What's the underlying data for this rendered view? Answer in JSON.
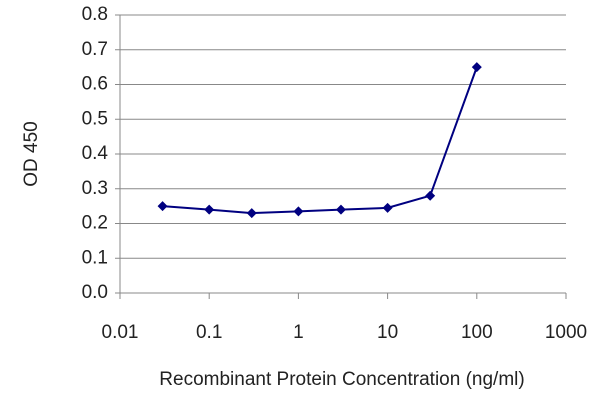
{
  "chart_data": {
    "type": "line",
    "xlabel": "Recombinant Protein Concentration (ng/ml)",
    "ylabel": "OD 450",
    "x": [
      0.03,
      0.1,
      0.3,
      1,
      3,
      10,
      30,
      100
    ],
    "series": [
      {
        "color": "#000080",
        "values": [
          0.25,
          0.24,
          0.23,
          0.235,
          0.24,
          0.245,
          0.28,
          0.65
        ]
      }
    ],
    "xscale": "log",
    "xlim": [
      0.01,
      1000
    ],
    "xticks": [
      0.01,
      0.1,
      1,
      10,
      100,
      1000
    ],
    "ylim": [
      0,
      0.8
    ],
    "yticks": [
      {
        "value": 0,
        "label": "0.0"
      },
      0.1,
      0.2,
      0.3,
      0.4,
      0.5,
      0.6,
      0.7,
      0.8
    ],
    "grid": true
  }
}
